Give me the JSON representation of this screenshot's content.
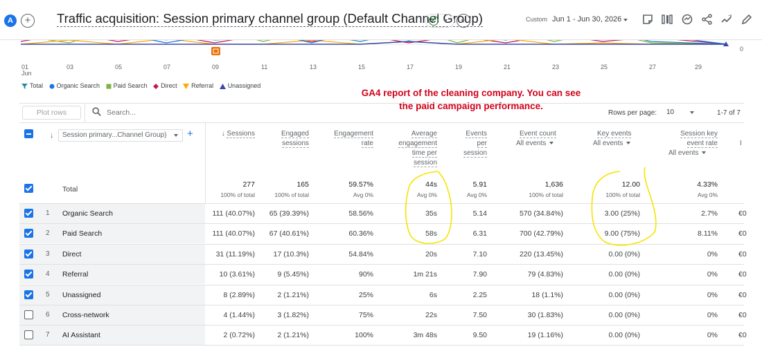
{
  "header": {
    "avatar_letter": "A",
    "add_symbol": "+",
    "report_title": "Traffic acquisition: Session primary channel group (Default Channel Group)",
    "date_label": "Custom",
    "date_range": "Jun 1 - Jun 30, 2026",
    "toolbar_icons": [
      "edit-report-icon",
      "compare-icon",
      "insights-icon",
      "share-icon",
      "trend-icon",
      "pencil-icon"
    ]
  },
  "chart": {
    "x_ticks": [
      "01",
      "03",
      "05",
      "07",
      "09",
      "11",
      "13",
      "15",
      "17",
      "19",
      "21",
      "23",
      "25",
      "27",
      "29"
    ],
    "x_first_sub": "Jun",
    "y_tick": "0",
    "legend": [
      {
        "label": "Total",
        "color": "#1e88a8",
        "icon": "pin"
      },
      {
        "label": "Organic Search",
        "color": "#1a73e8",
        "icon": "circle"
      },
      {
        "label": "Paid Search",
        "color": "#7cb342",
        "icon": "square"
      },
      {
        "label": "Direct",
        "color": "#c2185b",
        "icon": "diamond"
      },
      {
        "label": "Referral",
        "color": "#f9ab00",
        "icon": "triangle-down"
      },
      {
        "label": "Unassigned",
        "color": "#3949ab",
        "icon": "triangle-up"
      }
    ]
  },
  "annotation": {
    "line1": "GA4 report of the cleaning company. You can see",
    "line2": "the paid campaign performance."
  },
  "table_toolbar": {
    "plot_rows": "Plot rows",
    "search_placeholder": "Search...",
    "rows_per_page_label": "Rows per page:",
    "rows_per_page_value": "10",
    "pagination": "1-7 of 7"
  },
  "columns": {
    "dimension": "Session primary...Channel Group)",
    "sessions": "Sessions",
    "engaged_sessions_1": "Engaged",
    "engaged_sessions_2": "sessions",
    "engagement_rate_1": "Engagement",
    "engagement_rate_2": "rate",
    "avg_time_1": "Average",
    "avg_time_2": "engagement",
    "avg_time_3": "time per",
    "avg_time_4": "session",
    "events_per_1": "Events",
    "events_per_2": "per",
    "events_per_3": "session",
    "event_count": "Event count",
    "event_count_sub": "All events",
    "key_events": "Key events",
    "key_events_sub": "All events",
    "ske_rate_1": "Session key",
    "ske_rate_2": "event rate",
    "ske_rate_sub": "All events",
    "overflow_1": "I"
  },
  "totals": {
    "label": "Total",
    "sessions": "277",
    "sessions_sub": "100% of total",
    "engaged": "165",
    "engaged_sub": "100% of total",
    "eng_rate": "59.57%",
    "eng_rate_sub": "Avg 0%",
    "avg_time": "44s",
    "avg_time_sub": "Avg 0%",
    "events_per": "5.91",
    "events_per_sub": "Avg 0%",
    "event_count": "1,636",
    "event_count_sub": "100% of total",
    "key_events": "12.00",
    "key_events_sub": "100% of total",
    "ske_rate": "4.33%",
    "ske_rate_sub": "Avg 0%"
  },
  "rows": [
    {
      "idx": "1",
      "name": "Organic Search",
      "checked": true,
      "sessions": "111 (40.07%)",
      "engaged": "65 (39.39%)",
      "eng_rate": "58.56%",
      "avg_time": "35s",
      "events_per": "5.14",
      "event_count": "570 (34.84%)",
      "key_events": "3.00 (25%)",
      "ske_rate": "2.7%",
      "overflow": "€0"
    },
    {
      "idx": "2",
      "name": "Paid Search",
      "checked": true,
      "sessions": "111 (40.07%)",
      "engaged": "67 (40.61%)",
      "eng_rate": "60.36%",
      "avg_time": "58s",
      "events_per": "6.31",
      "event_count": "700 (42.79%)",
      "key_events": "9.00 (75%)",
      "ske_rate": "8.11%",
      "overflow": "€0"
    },
    {
      "idx": "3",
      "name": "Direct",
      "checked": true,
      "sessions": "31 (11.19%)",
      "engaged": "17 (10.3%)",
      "eng_rate": "54.84%",
      "avg_time": "20s",
      "events_per": "7.10",
      "event_count": "220 (13.45%)",
      "key_events": "0.00 (0%)",
      "ske_rate": "0%",
      "overflow": "€0"
    },
    {
      "idx": "4",
      "name": "Referral",
      "checked": true,
      "sessions": "10 (3.61%)",
      "engaged": "9 (5.45%)",
      "eng_rate": "90%",
      "avg_time": "1m 21s",
      "events_per": "7.90",
      "event_count": "79 (4.83%)",
      "key_events": "0.00 (0%)",
      "ske_rate": "0%",
      "overflow": "€0"
    },
    {
      "idx": "5",
      "name": "Unassigned",
      "checked": true,
      "sessions": "8 (2.89%)",
      "engaged": "2 (1.21%)",
      "eng_rate": "25%",
      "avg_time": "6s",
      "events_per": "2.25",
      "event_count": "18 (1.1%)",
      "key_events": "0.00 (0%)",
      "ske_rate": "0%",
      "overflow": "€0"
    },
    {
      "idx": "6",
      "name": "Cross-network",
      "checked": false,
      "sessions": "4 (1.44%)",
      "engaged": "3 (1.82%)",
      "eng_rate": "75%",
      "avg_time": "22s",
      "events_per": "7.50",
      "event_count": "30 (1.83%)",
      "key_events": "0.00 (0%)",
      "ske_rate": "0%",
      "overflow": "€0"
    },
    {
      "idx": "7",
      "name": "AI Assistant",
      "checked": false,
      "sessions": "2 (0.72%)",
      "engaged": "2 (1.21%)",
      "eng_rate": "100%",
      "avg_time": "3m 48s",
      "events_per": "9.50",
      "event_count": "19 (1.16%)",
      "key_events": "0.00 (0%)",
      "ske_rate": "0%",
      "overflow": "€0"
    }
  ]
}
